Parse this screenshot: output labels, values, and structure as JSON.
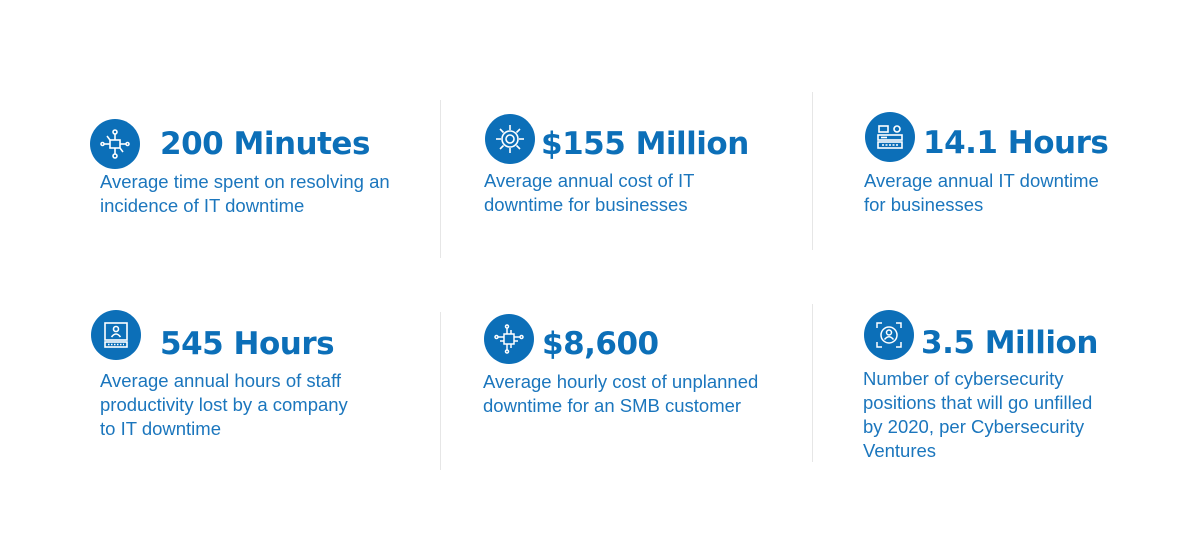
{
  "theme": {
    "accent": "#0c6fb8",
    "text": "#1b76bd",
    "divider": "#e6e6e6"
  },
  "stats": [
    {
      "icon": "circuit-icon",
      "value": "200 Minutes",
      "desc": [
        "Average time spent on resolving an",
        "incidence of IT downtime"
      ]
    },
    {
      "icon": "gear-circuit-icon",
      "value": "$155 Million",
      "desc": [
        "Average annual cost of IT",
        "downtime for businesses"
      ]
    },
    {
      "icon": "server-rack-icon",
      "value": "14.1 Hours",
      "desc": [
        "Average annual IT downtime",
        "for businesses"
      ]
    },
    {
      "icon": "computer-user-icon",
      "value": "545 Hours",
      "desc": [
        "Average annual hours of staff",
        "productivity lost by a company",
        "to IT downtime"
      ]
    },
    {
      "icon": "chip-network-icon",
      "value": "$8,600",
      "desc": [
        "Average hourly cost of unplanned",
        "downtime for an SMB customer"
      ]
    },
    {
      "icon": "user-target-icon",
      "value": "3.5 Million",
      "desc": [
        "Number of cybersecurity",
        "positions that will go unfilled",
        "by 2020, per Cybersecurity",
        "Ventures"
      ]
    }
  ]
}
